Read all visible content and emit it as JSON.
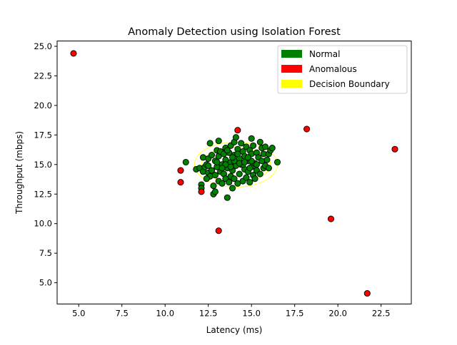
{
  "chart_data": {
    "type": "scatter",
    "title": "Anomaly Detection using Isolation Forest",
    "xlabel": "Latency (ms)",
    "ylabel": "Throughput (mbps)",
    "xlim": [
      3.75,
      24.25
    ],
    "ylim": [
      3.2,
      25.45
    ],
    "xticks": [
      5.0,
      7.5,
      10.0,
      12.5,
      15.0,
      17.5,
      20.0,
      22.5
    ],
    "yticks": [
      5.0,
      7.5,
      10.0,
      12.5,
      15.0,
      17.5,
      20.0,
      22.5,
      25.0
    ],
    "xtick_labels": [
      "5.0",
      "7.5",
      "10.0",
      "12.5",
      "15.0",
      "17.5",
      "20.0",
      "22.5"
    ],
    "ytick_labels": [
      "5.0",
      "7.5",
      "10.0",
      "12.5",
      "15.0",
      "17.5",
      "20.0",
      "22.5",
      "25.0"
    ],
    "legend_position": "top-right",
    "legend": [
      {
        "label": "Normal",
        "color": "#008000"
      },
      {
        "label": "Anomalous",
        "color": "#ff0000"
      },
      {
        "label": "Decision Boundary",
        "color": "#ffff00"
      }
    ],
    "decision_boundary": [
      {
        "cx": 14.1,
        "cy": 15.0,
        "rx": 2.4,
        "ry": 1.9
      },
      {
        "cx": 14.1,
        "cy": 15.0,
        "rx": 2.0,
        "ry": 1.45
      }
    ],
    "series": [
      {
        "name": "Normal",
        "color": "#008000",
        "points": [
          [
            11.2,
            15.2
          ],
          [
            11.8,
            14.6
          ],
          [
            12.0,
            14.7
          ],
          [
            12.1,
            13.3
          ],
          [
            12.1,
            13.0
          ],
          [
            12.2,
            14.4
          ],
          [
            12.2,
            15.6
          ],
          [
            12.3,
            14.8
          ],
          [
            12.4,
            15.0
          ],
          [
            12.5,
            14.3
          ],
          [
            12.5,
            15.5
          ],
          [
            12.6,
            16.8
          ],
          [
            12.6,
            14.0
          ],
          [
            12.7,
            15.8
          ],
          [
            12.7,
            14.5
          ],
          [
            12.8,
            13.2
          ],
          [
            12.8,
            12.5
          ],
          [
            12.9,
            12.7
          ],
          [
            12.9,
            15.3
          ],
          [
            12.9,
            14.1
          ],
          [
            13.0,
            16.2
          ],
          [
            13.0,
            14.8
          ],
          [
            13.1,
            17.0
          ],
          [
            13.1,
            15.7
          ],
          [
            13.1,
            13.6
          ],
          [
            13.2,
            14.4
          ],
          [
            13.2,
            16.1
          ],
          [
            13.3,
            15.0
          ],
          [
            13.3,
            13.4
          ],
          [
            13.4,
            15.9
          ],
          [
            13.4,
            14.2
          ],
          [
            13.5,
            16.4
          ],
          [
            13.5,
            13.8
          ],
          [
            13.5,
            15.4
          ],
          [
            13.6,
            12.2
          ],
          [
            13.6,
            14.7
          ],
          [
            13.7,
            16.0
          ],
          [
            13.7,
            13.5
          ],
          [
            13.8,
            15.2
          ],
          [
            13.8,
            14.0
          ],
          [
            13.8,
            16.6
          ],
          [
            13.9,
            13.0
          ],
          [
            13.9,
            14.5
          ],
          [
            14.0,
            15.8
          ],
          [
            14.0,
            16.9
          ],
          [
            14.0,
            13.8
          ],
          [
            14.1,
            17.3
          ],
          [
            14.1,
            14.9
          ],
          [
            14.2,
            16.3
          ],
          [
            14.2,
            13.4
          ],
          [
            14.3,
            15.5
          ],
          [
            14.3,
            14.2
          ],
          [
            14.4,
            16.8
          ],
          [
            14.4,
            15.0
          ],
          [
            14.5,
            13.6
          ],
          [
            14.5,
            16.1
          ],
          [
            14.6,
            14.6
          ],
          [
            14.6,
            15.7
          ],
          [
            14.7,
            16.5
          ],
          [
            14.7,
            13.9
          ],
          [
            14.8,
            15.3
          ],
          [
            14.8,
            14.4
          ],
          [
            14.9,
            16.2
          ],
          [
            14.9,
            13.5
          ],
          [
            15.0,
            15.9
          ],
          [
            15.0,
            14.8
          ],
          [
            15.0,
            17.2
          ],
          [
            15.1,
            14.1
          ],
          [
            15.1,
            16.6
          ],
          [
            15.2,
            15.1
          ],
          [
            15.2,
            13.8
          ],
          [
            15.3,
            16.0
          ],
          [
            15.3,
            14.5
          ],
          [
            15.4,
            15.6
          ],
          [
            15.5,
            16.9
          ],
          [
            15.5,
            14.2
          ],
          [
            15.6,
            15.3
          ],
          [
            15.6,
            16.4
          ],
          [
            15.7,
            14.7
          ],
          [
            15.7,
            15.9
          ],
          [
            15.8,
            16.5
          ],
          [
            15.8,
            14.9
          ],
          [
            15.9,
            15.4
          ],
          [
            16.0,
            15.9
          ],
          [
            16.0,
            14.7
          ],
          [
            16.1,
            16.2
          ],
          [
            16.2,
            16.4
          ],
          [
            16.5,
            15.2
          ],
          [
            12.5,
            14.9
          ],
          [
            13.0,
            15.2
          ],
          [
            13.5,
            15.0
          ],
          [
            14.0,
            15.3
          ],
          [
            14.5,
            15.0
          ],
          [
            15.0,
            15.3
          ],
          [
            13.3,
            14.7
          ],
          [
            13.8,
            14.8
          ],
          [
            14.3,
            15.1
          ],
          [
            14.8,
            15.6
          ],
          [
            15.3,
            15.0
          ],
          [
            13.6,
            16.2
          ],
          [
            14.2,
            15.9
          ],
          [
            14.9,
            14.7
          ],
          [
            12.4,
            13.8
          ],
          [
            13.9,
            15.6
          ],
          [
            14.6,
            15.2
          ]
        ]
      },
      {
        "name": "Anomalous",
        "color": "#ff0000",
        "points": [
          [
            4.7,
            24.4
          ],
          [
            10.9,
            14.5
          ],
          [
            10.9,
            13.5
          ],
          [
            12.1,
            12.7
          ],
          [
            13.1,
            9.4
          ],
          [
            14.2,
            17.9
          ],
          [
            18.2,
            18.0
          ],
          [
            19.6,
            10.4
          ],
          [
            21.7,
            4.1
          ],
          [
            23.3,
            16.3
          ]
        ]
      }
    ]
  }
}
